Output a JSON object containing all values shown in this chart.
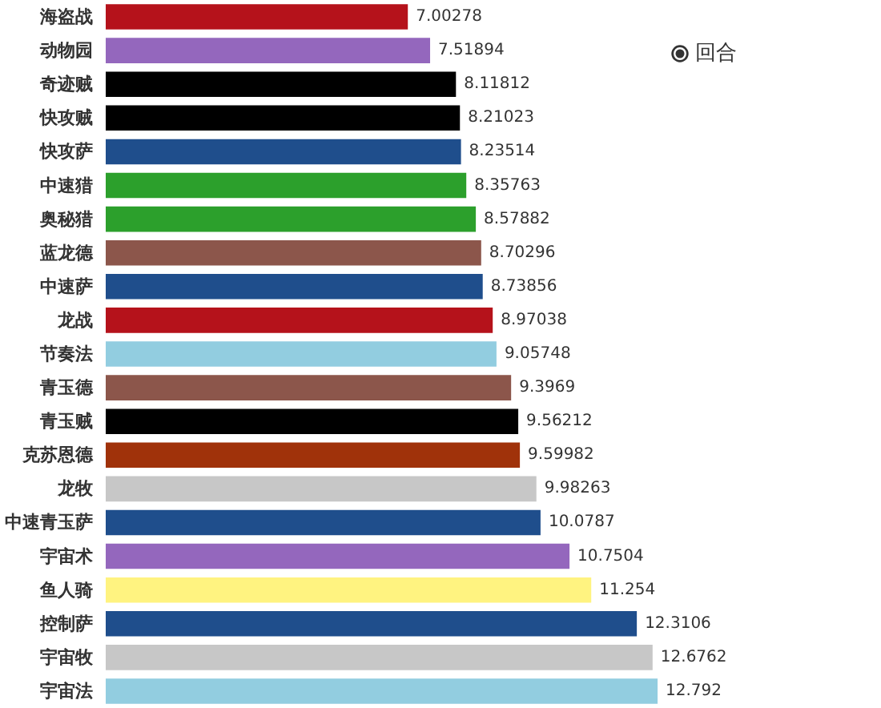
{
  "chart_data": {
    "type": "bar",
    "orientation": "horizontal",
    "data_labels": true,
    "legend": "top right",
    "categories": [
      "海盗战",
      "动物园",
      "奇迹贼",
      "快攻贼",
      "快攻萨",
      "中速猎",
      "奥秘猎",
      "蓝龙德",
      "中速萨",
      "龙战",
      "节奏法",
      "青玉德",
      "青玉贼",
      "克苏恩德",
      "龙牧",
      "中速青玉萨",
      "宇宙术",
      "鱼人骑",
      "控制萨",
      "宇宙牧",
      "宇宙法"
    ],
    "series": [
      {
        "name": "回合",
        "values": [
          7.00278,
          7.51894,
          8.11812,
          8.21023,
          8.23514,
          8.35763,
          8.57882,
          8.70296,
          8.73856,
          8.97038,
          9.05748,
          9.3969,
          9.56212,
          9.59982,
          9.98263,
          10.0787,
          10.7504,
          11.254,
          12.3106,
          12.6762,
          12.792
        ],
        "colors": [
          "#b5121b",
          "#9467bd",
          "#000000",
          "#000000",
          "#1f4e8c",
          "#2ca02c",
          "#2ca02c",
          "#8c564b",
          "#1f4e8c",
          "#b5121b",
          "#92cde0",
          "#8c564b",
          "#000000",
          "#a0320a",
          "#c7c7c7",
          "#1f4e8c",
          "#9467bd",
          "#fff380",
          "#1f4e8c",
          "#c7c7c7",
          "#92cde0"
        ]
      }
    ]
  }
}
